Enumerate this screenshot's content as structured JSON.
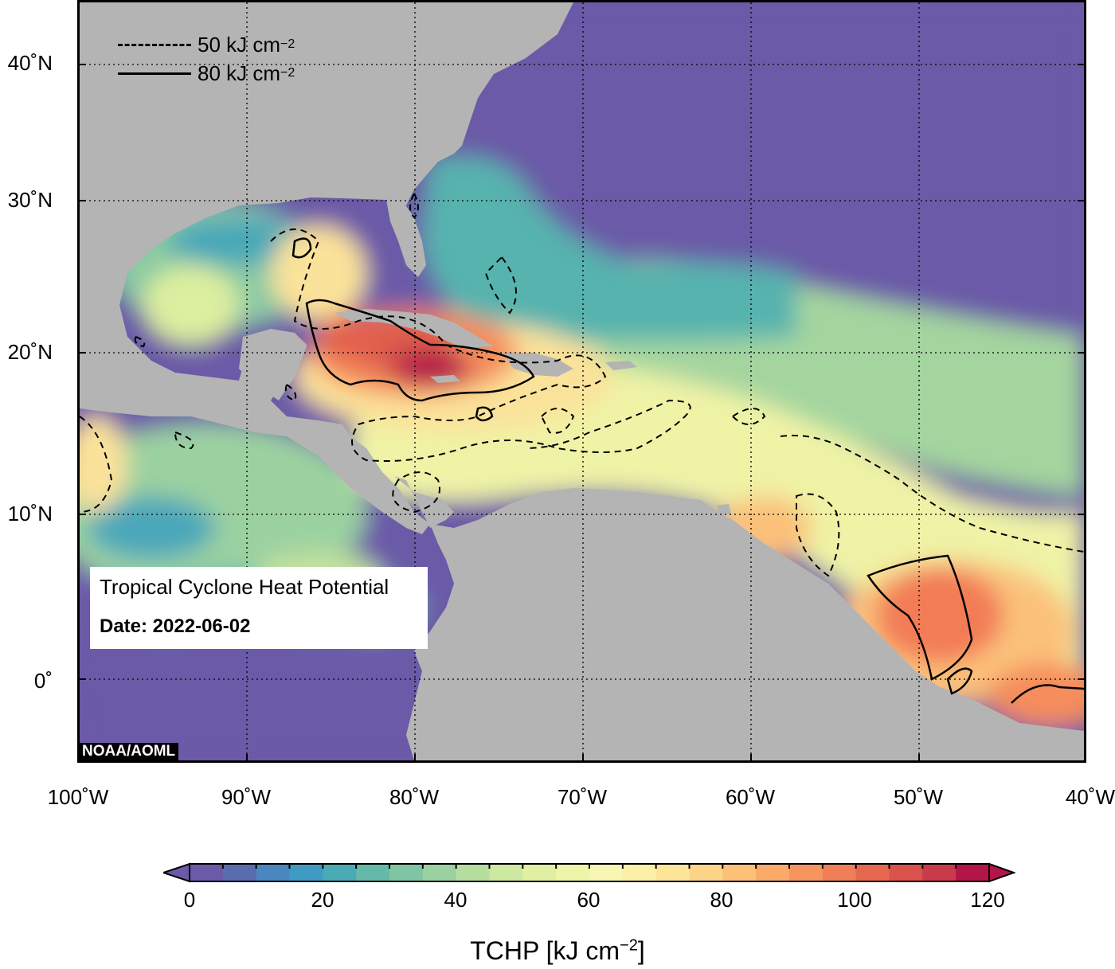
{
  "map": {
    "title": "Tropical Cyclone Heat Potential",
    "date_label": "Date: 2022-06-02",
    "credit": "NOAA/AOML",
    "lat_labels": [
      "40˚N",
      "30˚N",
      "20˚N",
      "10˚N",
      "0˚"
    ],
    "lon_labels": [
      "100˚W",
      "90˚W",
      "80˚W",
      "70˚W",
      "60˚W",
      "50˚W",
      "40˚W"
    ],
    "legend": [
      {
        "style": "dashed",
        "label": "50 kJ cm",
        "sup": "−2"
      },
      {
        "style": "solid",
        "label": "80 kJ cm",
        "sup": "−2"
      }
    ],
    "colors": {
      "land": "#b4b4b4",
      "low": "#6a5aa7",
      "high": "#b31548"
    }
  },
  "colorbar": {
    "ticks": [
      "0",
      "20",
      "40",
      "60",
      "80",
      "100",
      "120"
    ],
    "title": "TCHP [kJ cm",
    "title_sup": "−2",
    "title_end": "]",
    "colors": [
      "#6a5aa7",
      "#5a6cb0",
      "#4a86bf",
      "#3f9bc4",
      "#4aaab6",
      "#64b9a9",
      "#7fc5a3",
      "#9bd1a0",
      "#b5dd9e",
      "#cde8a0",
      "#e0efa2",
      "#eef4a8",
      "#f7f6b3",
      "#fbf0a6",
      "#fde498",
      "#fdd487",
      "#fdc078",
      "#fcaa6a",
      "#f79560",
      "#f07f57",
      "#e6684f",
      "#d9524b",
      "#c93a4a",
      "#b31548"
    ]
  }
}
